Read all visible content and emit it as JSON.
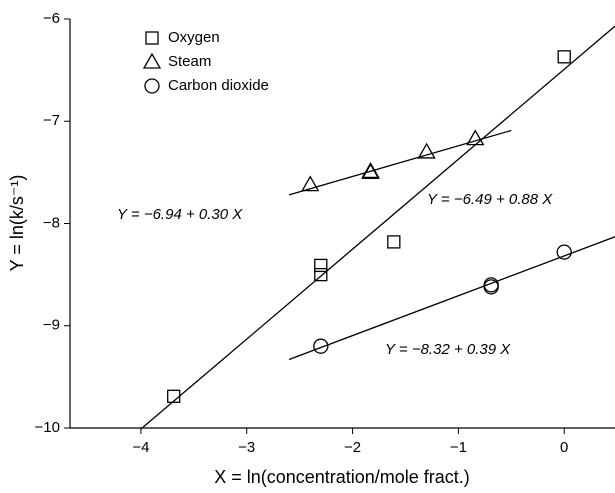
{
  "chart_data": {
    "type": "scatter",
    "xlabel": "X = ln(concentration/mole fract.)",
    "ylabel": "Y = ln(k/s⁻¹)",
    "xlim": [
      -4.67,
      0.48
    ],
    "ylim": [
      -10,
      -6
    ],
    "xticks": [
      {
        "value": -4,
        "label": "−4"
      },
      {
        "value": -3,
        "label": "−3"
      },
      {
        "value": -2,
        "label": "−2"
      },
      {
        "value": -1,
        "label": "−1"
      },
      0
    ],
    "yticks": [
      {
        "value": -10,
        "label": "−10"
      },
      {
        "value": -9,
        "label": "−9"
      },
      {
        "value": -8,
        "label": "−8"
      },
      {
        "value": -7,
        "label": "−7"
      },
      {
        "value": -6,
        "label": "−6"
      }
    ],
    "legend": "upper left",
    "series": [
      {
        "name": "Oxygen",
        "marker": "square",
        "color": "#000000",
        "x": [
          -3.69,
          -2.3,
          -2.3,
          -1.61,
          0
        ],
        "values": [
          -9.69,
          -8.41,
          -8.5,
          -8.18,
          -6.37
        ],
        "fit_x": [
          -4,
          0.48
        ],
        "fit_y": [
          -10.01,
          -6.07
        ],
        "fit_label": "Y = −6.49 + 0.88 X"
      },
      {
        "name": "Steam",
        "marker": "triangle",
        "color": "#000000",
        "x": [
          -2.4,
          -1.83,
          -1.83,
          -1.3,
          -0.84
        ],
        "values": [
          -7.62,
          -7.49,
          -7.5,
          -7.3,
          -7.17
        ],
        "fit_x": [
          -2.6,
          -0.5
        ],
        "fit_y": [
          -7.72,
          -7.09
        ],
        "fit_label": "Y = −6.94 + 0.30 X"
      },
      {
        "name": "Carbon dioxide",
        "marker": "circle",
        "color": "#000000",
        "x": [
          -2.3,
          -0.69,
          -0.69,
          0
        ],
        "values": [
          -9.2,
          -8.6,
          -8.62,
          -8.28
        ],
        "fit_x": [
          -2.6,
          0.48
        ],
        "fit_y": [
          -9.33,
          -8.13
        ],
        "fit_label": "Y = −8.32 + 0.39 X"
      }
    ]
  }
}
